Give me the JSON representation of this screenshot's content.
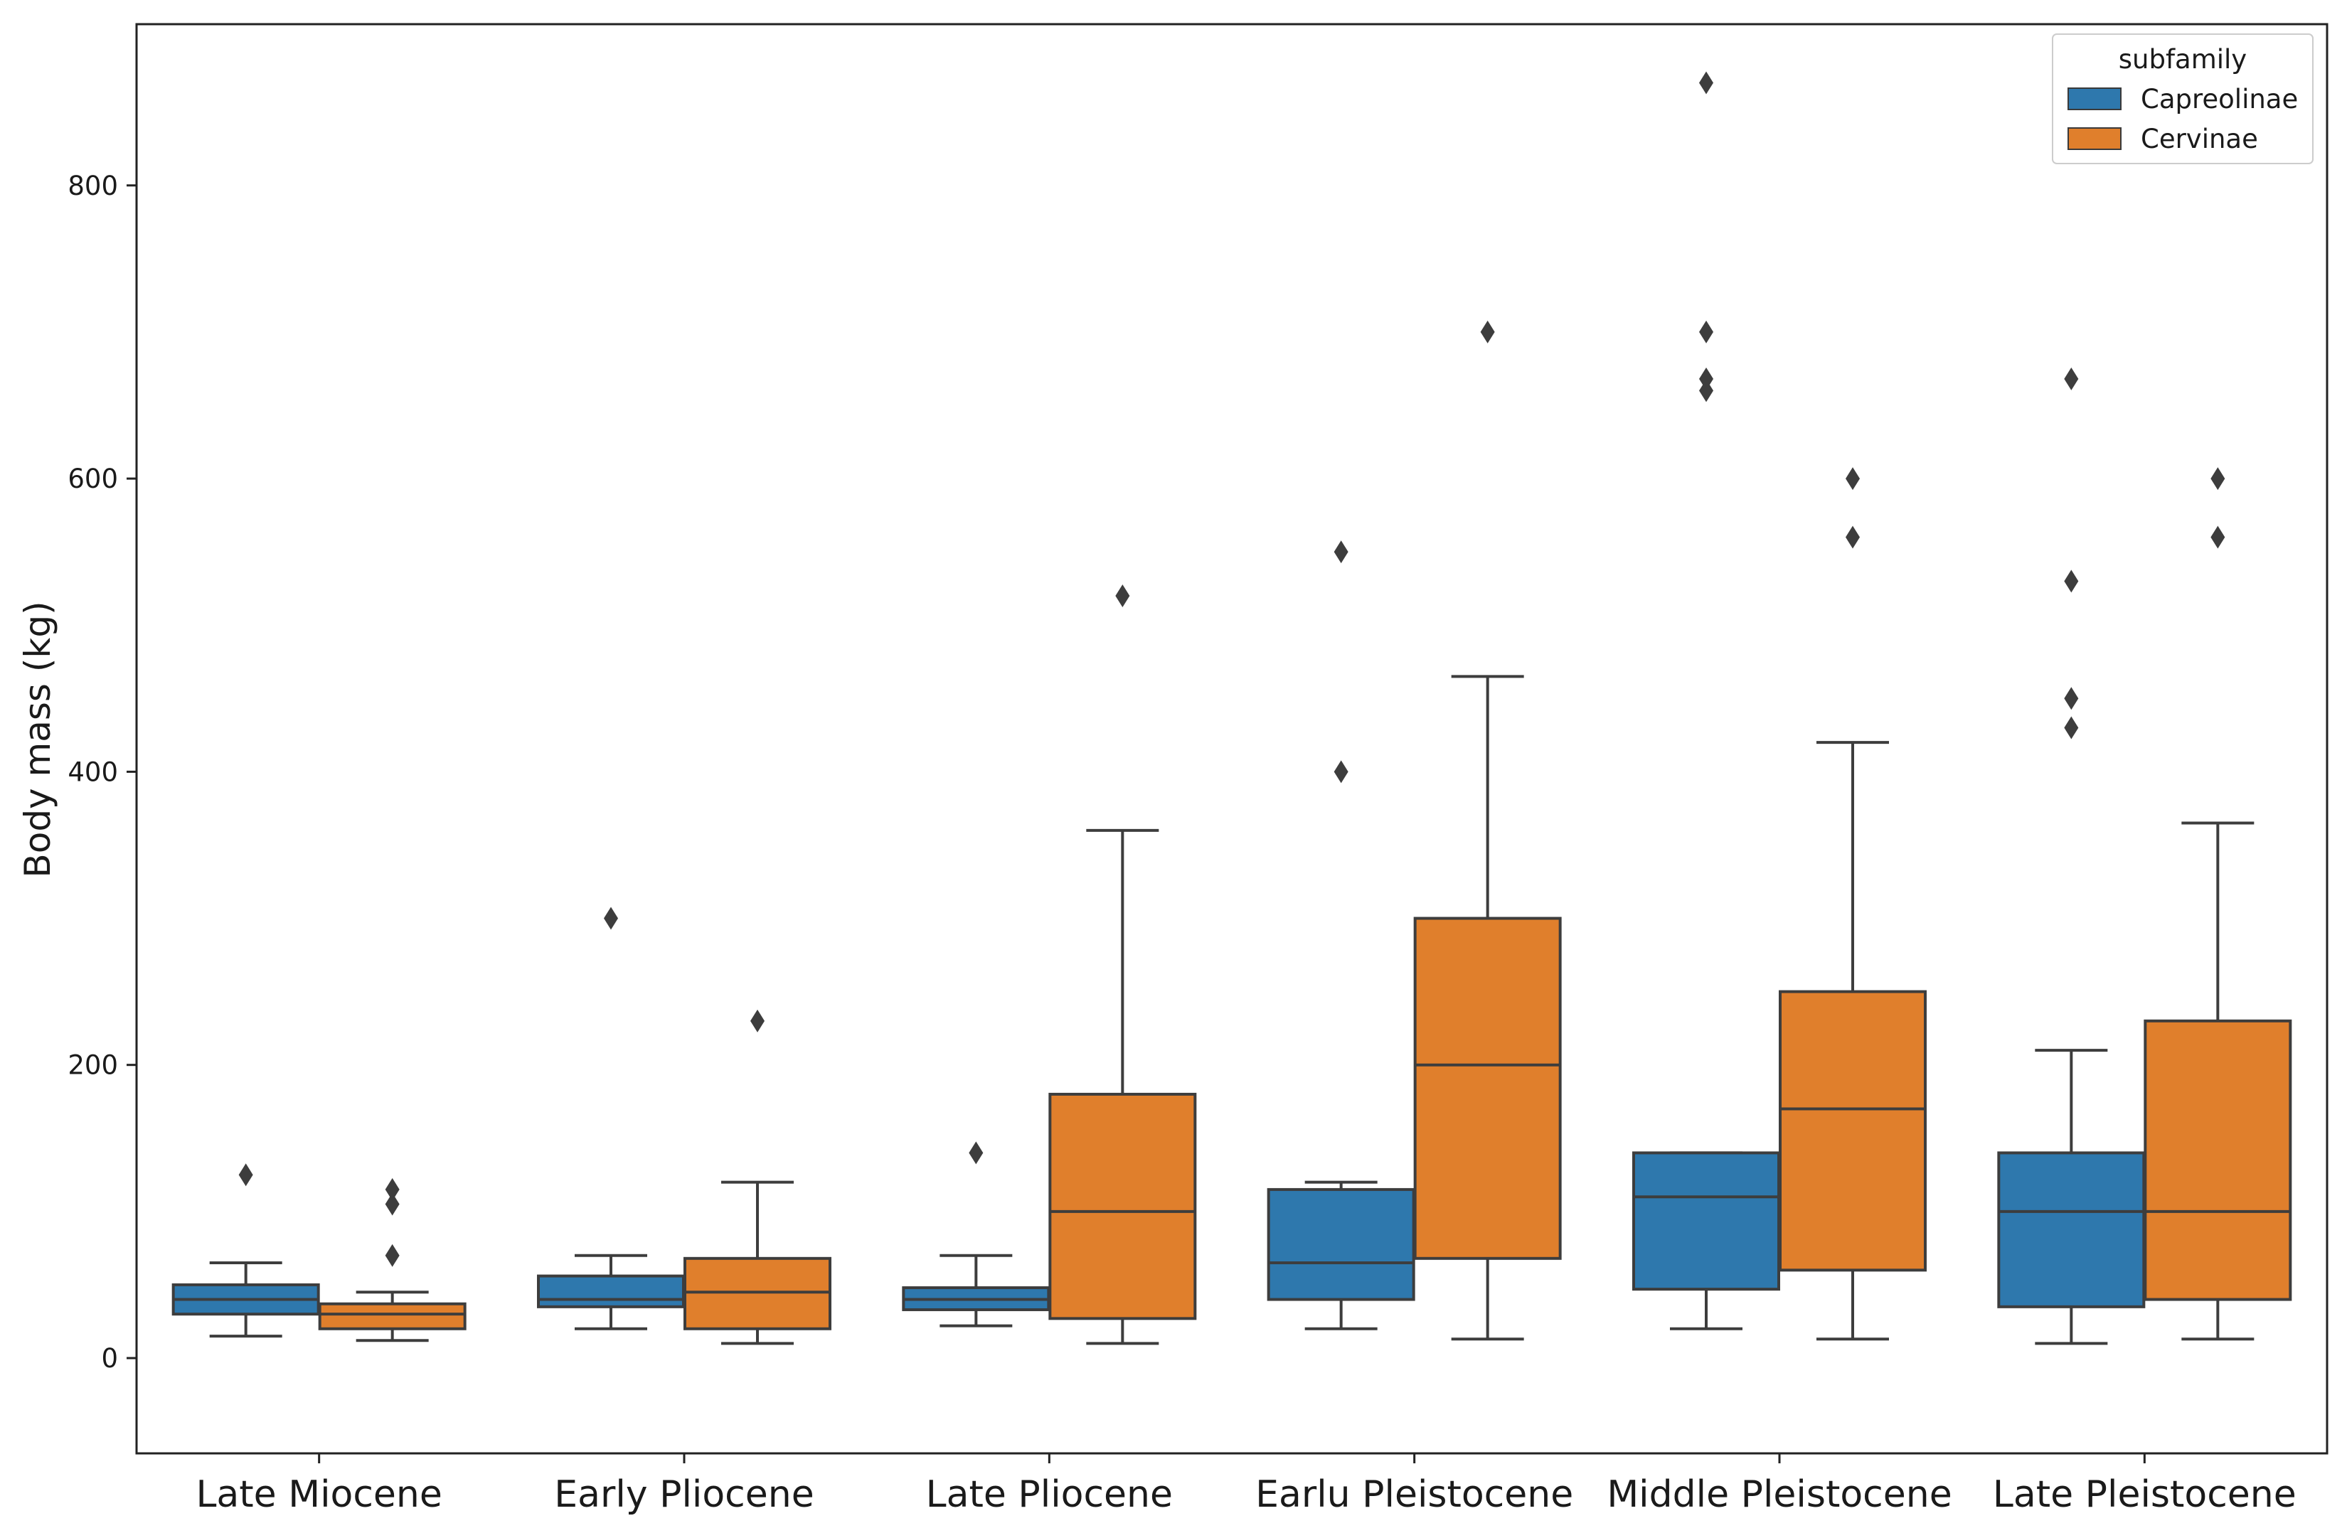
{
  "chart_data": {
    "type": "box",
    "title": "",
    "xlabel": "",
    "ylabel": "Body mass (kg)",
    "ylim": [
      -65,
      910
    ],
    "yticks": [
      0,
      200,
      400,
      600,
      800
    ],
    "categories": [
      "Late Miocene",
      "Early Pliocene",
      "Late Pliocene",
      "Earlu Pleistocene",
      "Middle Pleistocene",
      "Late Pleistocene"
    ],
    "legend": {
      "title": "subfamily",
      "position": "top-right"
    },
    "grid": false,
    "series": [
      {
        "name": "Capreolinae",
        "color": "#2e78ad",
        "boxes": [
          {
            "whisker_low": 15,
            "q1": 30,
            "median": 40,
            "q3": 50,
            "whisker_high": 65,
            "outliers": [
              125
            ]
          },
          {
            "whisker_low": 20,
            "q1": 35,
            "median": 40,
            "q3": 56,
            "whisker_high": 70,
            "outliers": [
              300
            ]
          },
          {
            "whisker_low": 22,
            "q1": 33,
            "median": 40,
            "q3": 48,
            "whisker_high": 70,
            "outliers": [
              140
            ]
          },
          {
            "whisker_low": 20,
            "q1": 40,
            "median": 65,
            "q3": 115,
            "whisker_high": 120,
            "outliers": [
              400,
              550
            ]
          },
          {
            "whisker_low": 20,
            "q1": 47,
            "median": 110,
            "q3": 140,
            "whisker_high": 140,
            "outliers": [
              660,
              668,
              700,
              870
            ]
          },
          {
            "whisker_low": 10,
            "q1": 35,
            "median": 100,
            "q3": 140,
            "whisker_high": 210,
            "outliers": [
              430,
              450,
              530,
              668
            ]
          }
        ]
      },
      {
        "name": "Cervinae",
        "color": "#e07f2c",
        "boxes": [
          {
            "whisker_low": 12,
            "q1": 20,
            "median": 30,
            "q3": 37,
            "whisker_high": 45,
            "outliers": [
              70,
              105,
              115
            ]
          },
          {
            "whisker_low": 10,
            "q1": 20,
            "median": 45,
            "q3": 68,
            "whisker_high": 120,
            "outliers": [
              230
            ]
          },
          {
            "whisker_low": 10,
            "q1": 27,
            "median": 100,
            "q3": 180,
            "whisker_high": 360,
            "outliers": [
              520
            ]
          },
          {
            "whisker_low": 13,
            "q1": 68,
            "median": 200,
            "q3": 300,
            "whisker_high": 465,
            "outliers": [
              700
            ]
          },
          {
            "whisker_low": 13,
            "q1": 60,
            "median": 170,
            "q3": 250,
            "whisker_high": 420,
            "outliers": [
              560,
              600
            ]
          },
          {
            "whisker_low": 13,
            "q1": 40,
            "median": 100,
            "q3": 230,
            "whisker_high": 365,
            "outliers": [
              560,
              600
            ]
          }
        ]
      }
    ]
  }
}
